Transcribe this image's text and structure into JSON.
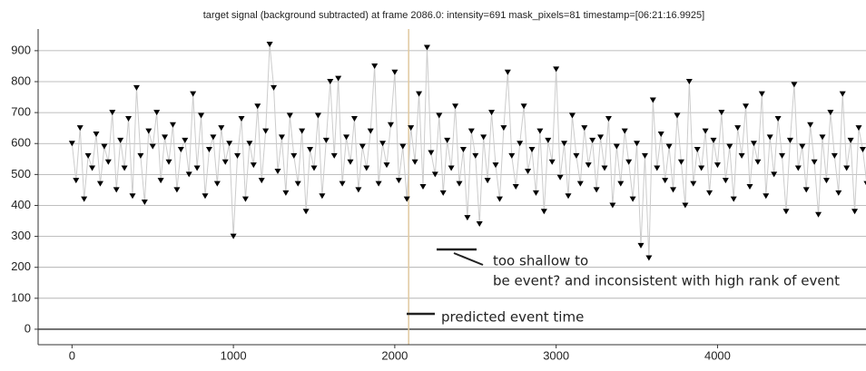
{
  "chart_data": {
    "type": "line",
    "title": "target signal (background subtracted) at frame 2086.0: intensity=691 mask_pixels=81 timestamp=[06:21:16.9925]",
    "x": [
      0,
      25,
      50,
      75,
      100,
      125,
      150,
      175,
      200,
      225,
      250,
      275,
      300,
      325,
      350,
      375,
      400,
      425,
      450,
      475,
      500,
      525,
      550,
      575,
      600,
      625,
      650,
      675,
      700,
      725,
      750,
      775,
      800,
      825,
      850,
      875,
      900,
      925,
      950,
      975,
      1000,
      1025,
      1050,
      1075,
      1100,
      1125,
      1150,
      1175,
      1200,
      1225,
      1250,
      1275,
      1300,
      1325,
      1350,
      1375,
      1400,
      1425,
      1450,
      1475,
      1500,
      1525,
      1550,
      1575,
      1600,
      1625,
      1650,
      1675,
      1700,
      1725,
      1750,
      1775,
      1800,
      1825,
      1850,
      1875,
      1900,
      1925,
      1950,
      1975,
      2000,
      2025,
      2050,
      2075,
      2100,
      2125,
      2150,
      2175,
      2200,
      2225,
      2250,
      2275,
      2300,
      2325,
      2350,
      2375,
      2400,
      2425,
      2450,
      2475,
      2500,
      2525,
      2550,
      2575,
      2600,
      2625,
      2650,
      2675,
      2700,
      2725,
      2750,
      2775,
      2800,
      2825,
      2850,
      2875,
      2900,
      2925,
      2950,
      2975,
      3000,
      3025,
      3050,
      3075,
      3100,
      3125,
      3150,
      3175,
      3200,
      3225,
      3250,
      3275,
      3300,
      3325,
      3350,
      3375,
      3400,
      3425,
      3450,
      3475,
      3500,
      3525,
      3550,
      3575,
      3600,
      3625,
      3650,
      3675,
      3700,
      3725,
      3750,
      3775,
      3800,
      3825,
      3850,
      3875,
      3900,
      3925,
      3950,
      3975,
      4000,
      4025,
      4050,
      4075,
      4100,
      4125,
      4150,
      4175,
      4200,
      4225,
      4250,
      4275,
      4300,
      4325,
      4350,
      4375,
      4400,
      4425,
      4450,
      4475,
      4500,
      4525,
      4550,
      4575,
      4600,
      4625,
      4650,
      4675,
      4700,
      4725,
      4750,
      4775,
      4800,
      4825,
      4850,
      4875,
      4900,
      4925,
      4950,
      4975
    ],
    "values": [
      600,
      480,
      650,
      420,
      560,
      520,
      630,
      470,
      590,
      540,
      700,
      450,
      610,
      520,
      680,
      430,
      780,
      560,
      410,
      640,
      590,
      700,
      480,
      620,
      540,
      660,
      450,
      580,
      610,
      500,
      760,
      520,
      690,
      430,
      580,
      620,
      470,
      650,
      540,
      600,
      300,
      560,
      680,
      420,
      600,
      530,
      720,
      480,
      640,
      920,
      780,
      510,
      620,
      440,
      690,
      560,
      470,
      640,
      380,
      580,
      520,
      690,
      430,
      610,
      800,
      560,
      810,
      470,
      620,
      540,
      680,
      450,
      590,
      520,
      640,
      850,
      470,
      600,
      530,
      660,
      830,
      480,
      590,
      420,
      650,
      540,
      760,
      460,
      910,
      570,
      500,
      690,
      440,
      610,
      520,
      720,
      470,
      580,
      360,
      640,
      560,
      340,
      620,
      480,
      700,
      530,
      420,
      650,
      830,
      560,
      460,
      600,
      720,
      510,
      580,
      440,
      640,
      380,
      610,
      540,
      840,
      490,
      600,
      430,
      690,
      560,
      470,
      650,
      530,
      610,
      450,
      620,
      520,
      680,
      400,
      590,
      470,
      640,
      540,
      420,
      600,
      270,
      560,
      230,
      740,
      520,
      630,
      480,
      590,
      450,
      690,
      540,
      400,
      800,
      470,
      580,
      520,
      640,
      440,
      610,
      530,
      700,
      480,
      590,
      420,
      650,
      560,
      720,
      460,
      600,
      540,
      760,
      430,
      620,
      500,
      680,
      560,
      380,
      610,
      790,
      520,
      590,
      450,
      660,
      540,
      370,
      620,
      480,
      700,
      560,
      440,
      760,
      520,
      610,
      380,
      650,
      580,
      470,
      640,
      540
    ],
    "color": "#000000",
    "line_color": "#cccccc",
    "xlim": [
      -210,
      4920
    ],
    "xticks": [
      0,
      1000,
      2000,
      3000,
      4000
    ],
    "ylim": [
      -50,
      970
    ],
    "yticks": [
      0,
      100,
      200,
      300,
      400,
      500,
      600,
      700,
      800,
      900
    ],
    "grid": true,
    "marker_x": 2086,
    "marker_color": "#e0c9a0",
    "annotations": [
      "too shallow to",
      "be event? and inconsistent with high rank of event",
      "predicted event time"
    ]
  }
}
